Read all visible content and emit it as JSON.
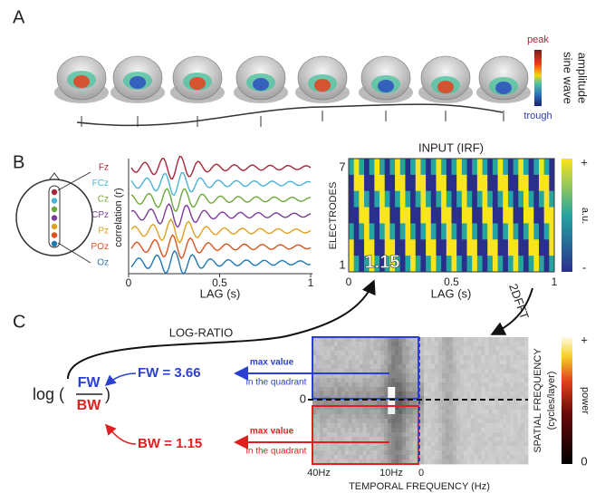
{
  "panel_a": {
    "label": "A",
    "colorbar_top": "peak",
    "colorbar_bottom": "trough",
    "colorbar_title_1": "sine wave",
    "colorbar_title_2": "amplitude"
  },
  "panel_b": {
    "label": "B",
    "electrodes": [
      {
        "label": "Fz",
        "color": "#a3283a"
      },
      {
        "label": "FCz",
        "color": "#4bb3d6"
      },
      {
        "label": "Cz",
        "color": "#6fa83a"
      },
      {
        "label": "CPz",
        "color": "#7d3c98"
      },
      {
        "label": "Pz",
        "color": "#e0a020"
      },
      {
        "label": "POz",
        "color": "#d9541e"
      },
      {
        "label": "Oz",
        "color": "#1f77b4"
      }
    ],
    "traces_y_label": "correlation (r)",
    "traces_x_label": "LAG (s)",
    "traces_x_ticks": [
      "0",
      "0.5",
      "1"
    ],
    "heatmap": {
      "title": "INPUT (IRF)",
      "y_label": "ELECTRODES",
      "y_ticks": [
        "7",
        "1"
      ],
      "x_ticks": [
        "0",
        "0.5",
        "1"
      ],
      "x_label": "LAG (s)",
      "annotation": "1.15",
      "colorbar_top": "+",
      "colorbar_bottom": "-",
      "colorbar_label": "a.u."
    }
  },
  "panel_c": {
    "label": "C",
    "log_ratio": "LOG-RATIO",
    "fft": "2DFFT",
    "formula": {
      "log": "log (",
      "numerator": "FW",
      "denominator": "BW",
      "close": ")"
    },
    "fw_value": "FW = 3.66",
    "bw_value": "BW = 1.15",
    "fw_note_1": "max value",
    "fw_note_2": "in the quadrant",
    "bw_note_1": "max value",
    "bw_note_2": "in the quadrant",
    "spectrum": {
      "x_ticks": [
        "40Hz",
        "10Hz",
        "0"
      ],
      "x_label": "TEMPORAL FREQUENCY (Hz)",
      "y_tick": "0",
      "y_label_1": "SPATIAL FREQUENCY",
      "y_label_2": "(cycles/layer)",
      "colorbar_top": "+",
      "colorbar_bottom": "0",
      "colorbar_label": "power"
    }
  }
}
